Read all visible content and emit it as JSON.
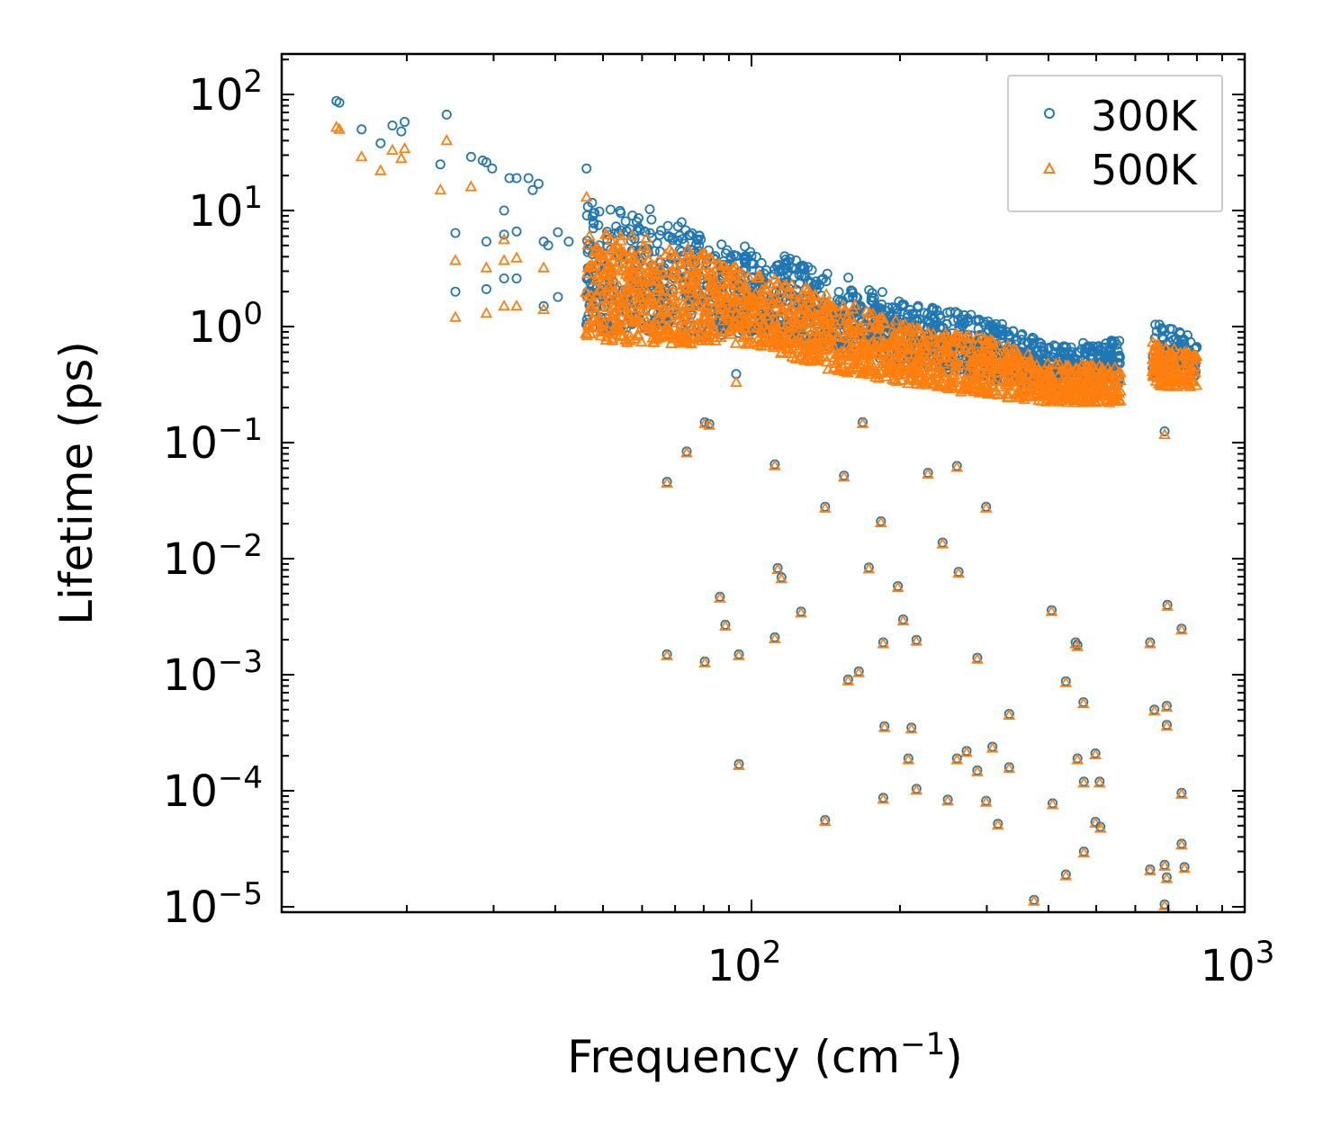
{
  "chart_data": {
    "type": "scatter",
    "title": "",
    "xlabel": "Frequency (cm",
    "xlabel_sup": "−1",
    "xlabel_end": ")",
    "ylabel": "Lifetime (ps)",
    "xscale": "log",
    "yscale": "log",
    "xlim": [
      11.2,
      1000
    ],
    "ylim": [
      9.1e-06,
      220
    ],
    "x_ticks": [
      {
        "base": "10",
        "exp": "2",
        "value": 100
      },
      {
        "base": "10",
        "exp": "3",
        "value": 1000
      }
    ],
    "y_ticks": [
      {
        "base": "10",
        "exp": "2",
        "value": 100
      },
      {
        "base": "10",
        "exp": "1",
        "value": 10
      },
      {
        "base": "10",
        "exp": "0",
        "value": 1
      },
      {
        "base": "10",
        "exp": "−1",
        "value": 0.1
      },
      {
        "base": "10",
        "exp": "−2",
        "value": 0.01
      },
      {
        "base": "10",
        "exp": "−3",
        "value": 0.001
      },
      {
        "base": "10",
        "exp": "−4",
        "value": 0.0001
      },
      {
        "base": "10",
        "exp": "−5",
        "value": 1e-05
      }
    ],
    "grid": false,
    "legend_position": "top-right",
    "series": [
      {
        "name": "300K",
        "marker": "circle",
        "color": "#1f77b4",
        "points": [
          [
            14.4,
            88
          ],
          [
            14.6,
            85
          ],
          [
            16.2,
            50
          ],
          [
            17.7,
            38
          ],
          [
            18.7,
            54
          ],
          [
            19.5,
            48
          ],
          [
            19.8,
            58
          ],
          [
            23.4,
            25
          ],
          [
            24.1,
            67
          ],
          [
            25.1,
            6.4
          ],
          [
            25.1,
            2.0
          ],
          [
            27.0,
            29
          ],
          [
            28.5,
            27
          ],
          [
            29.0,
            26
          ],
          [
            29.0,
            5.4
          ],
          [
            29.0,
            2.1
          ],
          [
            29.8,
            23
          ],
          [
            31.5,
            10
          ],
          [
            31.5,
            6.2
          ],
          [
            31.5,
            2.6
          ],
          [
            32.3,
            19
          ],
          [
            33.4,
            19
          ],
          [
            33.4,
            6.6
          ],
          [
            33.4,
            2.6
          ],
          [
            35.3,
            19
          ],
          [
            36.0,
            15
          ],
          [
            37.0,
            17
          ],
          [
            37.9,
            5.4
          ],
          [
            37.9,
            1.5
          ],
          [
            38.7,
            5.0
          ],
          [
            40.5,
            6.5
          ],
          [
            40.5,
            1.8
          ],
          [
            42.6,
            5.4
          ],
          [
            46.3,
            23
          ],
          [
            93.1,
            0.39
          ],
          [
            688,
            0.125
          ]
        ],
        "dense_band": {
          "freq": [
            46,
            60,
            80,
            100,
            150,
            200,
            300,
            400,
            560,
            650,
            800
          ],
          "upper": [
            12,
            11,
            7,
            5,
            3,
            1.7,
            1.2,
            0.7,
            0.8,
            1.1,
            0.8
          ],
          "lower": [
            0.9,
            0.9,
            0.8,
            0.9,
            0.6,
            0.5,
            0.35,
            0.3,
            0.3,
            0.35,
            0.35
          ],
          "gap": [
            560,
            650
          ]
        }
      },
      {
        "name": "500K",
        "marker": "triangle",
        "color": "#ff7f0e",
        "points": [
          [
            14.4,
            52
          ],
          [
            14.6,
            50
          ],
          [
            16.2,
            29
          ],
          [
            17.7,
            22
          ],
          [
            18.7,
            33
          ],
          [
            19.5,
            28
          ],
          [
            19.8,
            34
          ],
          [
            23.4,
            15
          ],
          [
            24.1,
            40
          ],
          [
            25.1,
            3.7
          ],
          [
            25.1,
            1.2
          ],
          [
            27.0,
            16
          ],
          [
            29.0,
            3.2
          ],
          [
            29.0,
            1.3
          ],
          [
            31.5,
            5.6
          ],
          [
            31.5,
            3.7
          ],
          [
            31.5,
            1.5
          ],
          [
            33.4,
            3.9
          ],
          [
            33.4,
            1.5
          ],
          [
            37.9,
            3.2
          ],
          [
            37.9,
            1.4
          ],
          [
            46.3,
            13
          ],
          [
            93.1,
            0.33
          ],
          [
            115,
            0.6
          ],
          [
            688,
            0.117
          ]
        ],
        "dense_band": {
          "freq": [
            46,
            60,
            80,
            100,
            150,
            200,
            300,
            400,
            560,
            650,
            800
          ],
          "upper": [
            6.5,
            6,
            4.5,
            3,
            1.8,
            1.1,
            0.8,
            0.5,
            0.45,
            0.75,
            0.6
          ],
          "lower": [
            0.8,
            0.7,
            0.7,
            0.7,
            0.4,
            0.33,
            0.25,
            0.22,
            0.22,
            0.3,
            0.3
          ],
          "gap": [
            560,
            650
          ]
        }
      }
    ],
    "shared_low_points": [
      [
        67.4,
        0.046
      ],
      [
        73.9,
        0.084
      ],
      [
        80.4,
        0.15
      ],
      [
        82.1,
        0.145
      ],
      [
        111.5,
        0.065
      ],
      [
        141,
        0.028
      ],
      [
        154,
        0.052
      ],
      [
        168,
        0.15
      ],
      [
        183,
        0.021
      ],
      [
        228,
        0.055
      ],
      [
        261,
        0.063
      ],
      [
        299,
        0.028
      ],
      [
        244,
        0.0138
      ],
      [
        173,
        0.0084
      ],
      [
        113,
        0.0083
      ],
      [
        115,
        0.0069
      ],
      [
        198,
        0.0058
      ],
      [
        203,
        0.003
      ],
      [
        126,
        0.0035
      ],
      [
        86.3,
        0.0047
      ],
      [
        88.5,
        0.0027
      ],
      [
        67.4,
        0.0015
      ],
      [
        80.4,
        0.0013
      ],
      [
        94.3,
        0.0015
      ],
      [
        111.5,
        0.0021
      ],
      [
        185,
        0.0019
      ],
      [
        216,
        0.002
      ],
      [
        263,
        0.0077
      ],
      [
        287,
        0.0014
      ],
      [
        406,
        0.0036
      ],
      [
        454,
        0.0019
      ],
      [
        458,
        0.0018
      ],
      [
        643,
        0.0019
      ],
      [
        745,
        0.0025
      ],
      [
        697,
        0.004
      ],
      [
        157,
        0.00091
      ],
      [
        165,
        0.00107
      ],
      [
        434,
        0.00088
      ],
      [
        471,
        0.00058
      ],
      [
        695,
        0.00054
      ],
      [
        656,
        0.0005
      ],
      [
        333,
        0.00046
      ],
      [
        186,
        0.00036
      ],
      [
        211,
        0.00035
      ],
      [
        695,
        0.00037
      ],
      [
        208,
        0.00019
      ],
      [
        273,
        0.00022
      ],
      [
        261,
        0.00019
      ],
      [
        308,
        0.00024
      ],
      [
        458,
        0.00019
      ],
      [
        498,
        0.00021
      ],
      [
        94.3,
        0.00017
      ],
      [
        333,
        0.00016
      ],
      [
        287,
        0.00015
      ],
      [
        472,
        0.00012
      ],
      [
        508,
        0.00012
      ],
      [
        299,
        8.2e-05
      ],
      [
        185,
        8.7e-05
      ],
      [
        216,
        0.000104
      ],
      [
        250,
        8.4e-05
      ],
      [
        408,
        7.8e-05
      ],
      [
        745,
        9.6e-05
      ],
      [
        141,
        5.6e-05
      ],
      [
        316,
        5.2e-05
      ],
      [
        498,
        5.4e-05
      ],
      [
        510,
        4.9e-05
      ],
      [
        374,
        1.15e-05
      ],
      [
        434,
        1.9e-05
      ],
      [
        472,
        3e-05
      ],
      [
        643,
        2.1e-05
      ],
      [
        688,
        2.3e-05
      ],
      [
        695,
        1.8e-05
      ],
      [
        745,
        3.5e-05
      ],
      [
        755,
        2.2e-05
      ],
      [
        688,
        1.05e-05
      ]
    ]
  }
}
